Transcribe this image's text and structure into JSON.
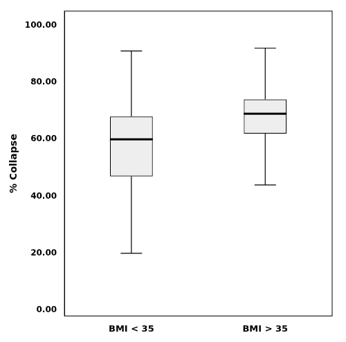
{
  "chart_data": {
    "type": "box",
    "categories": [
      "BMI < 35",
      "BMI > 35"
    ],
    "box_data": [
      {
        "whislo": 20,
        "q1": 47,
        "med": 60,
        "q3": 68,
        "whishi": 91
      },
      {
        "whislo": 44,
        "q1": 62,
        "med": 69,
        "q3": 74,
        "whishi": 92
      }
    ],
    "ylabel": "% Collapse",
    "ylim": [
      -2,
      105
    ],
    "yticks": [
      {
        "value": 0,
        "label": "0.00"
      },
      {
        "value": 20,
        "label": "20.00"
      },
      {
        "value": 40,
        "label": "40.00"
      },
      {
        "value": 60,
        "label": "60.00"
      },
      {
        "value": 80,
        "label": "80.00"
      },
      {
        "value": 100,
        "label": "100.00"
      }
    ],
    "color": "#eeeeee",
    "grid": false
  }
}
